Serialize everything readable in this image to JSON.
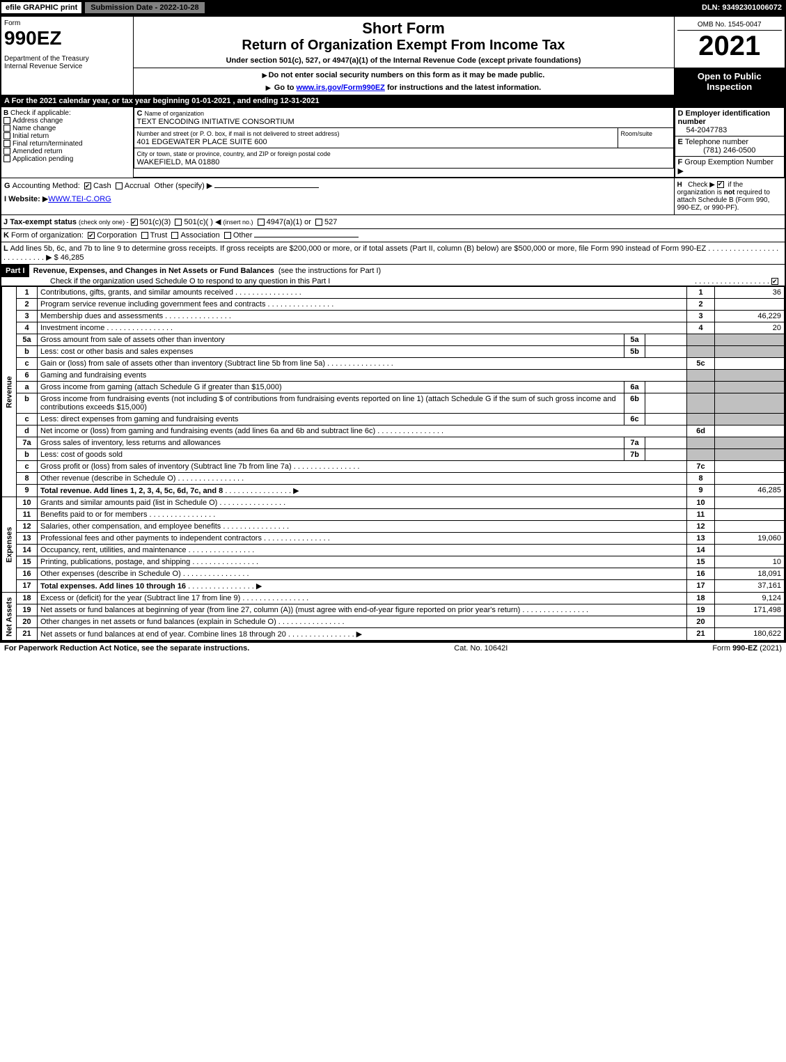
{
  "topbar": {
    "efile": "efile GRAPHIC print",
    "submission": "Submission Date - 2022-10-28",
    "dln": "DLN: 93492301006072"
  },
  "header": {
    "form_label": "Form",
    "form_number": "990EZ",
    "dept": "Department of the Treasury\nInternal Revenue Service",
    "short_form": "Short Form",
    "title": "Return of Organization Exempt From Income Tax",
    "under": "Under section 501(c), 527, or 4947(a)(1) of the Internal Revenue Code (except private foundations)",
    "warn": "Do not enter social security numbers on this form as it may be made public.",
    "goto_prefix": "Go to ",
    "goto_link": "www.irs.gov/Form990EZ",
    "goto_suffix": " for instructions and the latest information.",
    "omb": "OMB No. 1545-0047",
    "year": "2021",
    "open": "Open to Public Inspection"
  },
  "line_a": "For the 2021 calendar year, or tax year beginning 01-01-2021 , and ending 12-31-2021",
  "section_b": {
    "label": "Check if applicable:",
    "items": [
      "Address change",
      "Name change",
      "Initial return",
      "Final return/terminated",
      "Amended return",
      "Application pending"
    ]
  },
  "section_c": {
    "label_name": "Name of organization",
    "name": "TEXT ENCODING INITIATIVE CONSORTIUM",
    "label_street": "Number and street (or P. O. box, if mail is not delivered to street address)",
    "room_label": "Room/suite",
    "street": "401 EDGEWATER PLACE SUITE 600",
    "label_city": "City or town, state or province, country, and ZIP or foreign postal code",
    "city": "WAKEFIELD, MA  01880"
  },
  "section_d": {
    "label": "Employer identification number",
    "value": "54-2047783"
  },
  "section_e": {
    "label": "Telephone number",
    "value": "(781) 246-0500"
  },
  "section_f": {
    "label": "Group Exemption Number",
    "arrow": "▶"
  },
  "line_g": {
    "label": "Accounting Method:",
    "cash": "Cash",
    "accrual": "Accrual",
    "other": "Other (specify)"
  },
  "line_h": {
    "text1": "Check ▶",
    "text2": "if the organization is ",
    "not": "not",
    "text3": " required to attach Schedule B (Form 990, 990-EZ, or 990-PF)."
  },
  "line_i": {
    "label": "Website:",
    "value": "WWW.TEI-C.ORG"
  },
  "line_j": {
    "label": "Tax-exempt status",
    "sub": "(check only one) -",
    "o1": "501(c)(3)",
    "o2": "501(c)(  )",
    "o2b": "(insert no.)",
    "o3": "4947(a)(1) or",
    "o4": "527"
  },
  "line_k": {
    "label": "Form of organization:",
    "o1": "Corporation",
    "o2": "Trust",
    "o3": "Association",
    "o4": "Other"
  },
  "line_l": {
    "text": "Add lines 5b, 6c, and 7b to line 9 to determine gross receipts. If gross receipts are $200,000 or more, or if total assets (Part II, column (B) below) are $500,000 or more, file Form 990 instead of Form 990-EZ",
    "amount": "$ 46,285"
  },
  "part1": {
    "label": "Part I",
    "title": "Revenue, Expenses, and Changes in Net Assets or Fund Balances",
    "sub": "(see the instructions for Part I)",
    "check_line": "Check if the organization used Schedule O to respond to any question in this Part I"
  },
  "sections": {
    "revenue": "Revenue",
    "expenses": "Expenses",
    "netassets": "Net Assets"
  },
  "lines": [
    {
      "n": "1",
      "desc": "Contributions, gifts, grants, and similar amounts received",
      "ref": "1",
      "amt": "36"
    },
    {
      "n": "2",
      "desc": "Program service revenue including government fees and contracts",
      "ref": "2",
      "amt": ""
    },
    {
      "n": "3",
      "desc": "Membership dues and assessments",
      "ref": "3",
      "amt": "46,229"
    },
    {
      "n": "4",
      "desc": "Investment income",
      "ref": "4",
      "amt": "20"
    },
    {
      "n": "5a",
      "desc": "Gross amount from sale of assets other than inventory",
      "sub": "5a",
      "subamt": ""
    },
    {
      "n": "b",
      "desc": "Less: cost or other basis and sales expenses",
      "sub": "5b",
      "subamt": ""
    },
    {
      "n": "c",
      "desc": "Gain or (loss) from sale of assets other than inventory (Subtract line 5b from line 5a)",
      "ref": "5c",
      "amt": ""
    },
    {
      "n": "6",
      "desc": "Gaming and fundraising events"
    },
    {
      "n": "a",
      "desc": "Gross income from gaming (attach Schedule G if greater than $15,000)",
      "sub": "6a",
      "subamt": ""
    },
    {
      "n": "b",
      "desc": "Gross income from fundraising events (not including $                  of contributions from fundraising events reported on line 1) (attach Schedule G if the sum of such gross income and contributions exceeds $15,000)",
      "sub": "6b",
      "subamt": ""
    },
    {
      "n": "c",
      "desc": "Less: direct expenses from gaming and fundraising events",
      "sub": "6c",
      "subamt": ""
    },
    {
      "n": "d",
      "desc": "Net income or (loss) from gaming and fundraising events (add lines 6a and 6b and subtract line 6c)",
      "ref": "6d",
      "amt": ""
    },
    {
      "n": "7a",
      "desc": "Gross sales of inventory, less returns and allowances",
      "sub": "7a",
      "subamt": ""
    },
    {
      "n": "b",
      "desc": "Less: cost of goods sold",
      "sub": "7b",
      "subamt": ""
    },
    {
      "n": "c",
      "desc": "Gross profit or (loss) from sales of inventory (Subtract line 7b from line 7a)",
      "ref": "7c",
      "amt": ""
    },
    {
      "n": "8",
      "desc": "Other revenue (describe in Schedule O)",
      "ref": "8",
      "amt": ""
    },
    {
      "n": "9",
      "desc": "Total revenue. Add lines 1, 2, 3, 4, 5c, 6d, 7c, and 8",
      "ref": "9",
      "amt": "46,285",
      "bold": true,
      "arrow": true
    }
  ],
  "exp_lines": [
    {
      "n": "10",
      "desc": "Grants and similar amounts paid (list in Schedule O)",
      "ref": "10",
      "amt": ""
    },
    {
      "n": "11",
      "desc": "Benefits paid to or for members",
      "ref": "11",
      "amt": ""
    },
    {
      "n": "12",
      "desc": "Salaries, other compensation, and employee benefits",
      "ref": "12",
      "amt": ""
    },
    {
      "n": "13",
      "desc": "Professional fees and other payments to independent contractors",
      "ref": "13",
      "amt": "19,060"
    },
    {
      "n": "14",
      "desc": "Occupancy, rent, utilities, and maintenance",
      "ref": "14",
      "amt": ""
    },
    {
      "n": "15",
      "desc": "Printing, publications, postage, and shipping",
      "ref": "15",
      "amt": "10"
    },
    {
      "n": "16",
      "desc": "Other expenses (describe in Schedule O)",
      "ref": "16",
      "amt": "18,091"
    },
    {
      "n": "17",
      "desc": "Total expenses. Add lines 10 through 16",
      "ref": "17",
      "amt": "37,161",
      "bold": true,
      "arrow": true
    }
  ],
  "na_lines": [
    {
      "n": "18",
      "desc": "Excess or (deficit) for the year (Subtract line 17 from line 9)",
      "ref": "18",
      "amt": "9,124"
    },
    {
      "n": "19",
      "desc": "Net assets or fund balances at beginning of year (from line 27, column (A)) (must agree with end-of-year figure reported on prior year's return)",
      "ref": "19",
      "amt": "171,498"
    },
    {
      "n": "20",
      "desc": "Other changes in net assets or fund balances (explain in Schedule O)",
      "ref": "20",
      "amt": ""
    },
    {
      "n": "21",
      "desc": "Net assets or fund balances at end of year. Combine lines 18 through 20",
      "ref": "21",
      "amt": "180,622",
      "arrow": true
    }
  ],
  "footer": {
    "left": "For Paperwork Reduction Act Notice, see the separate instructions.",
    "center": "Cat. No. 10642I",
    "right_prefix": "Form ",
    "right_form": "990-EZ",
    "right_suffix": " (2021)"
  }
}
